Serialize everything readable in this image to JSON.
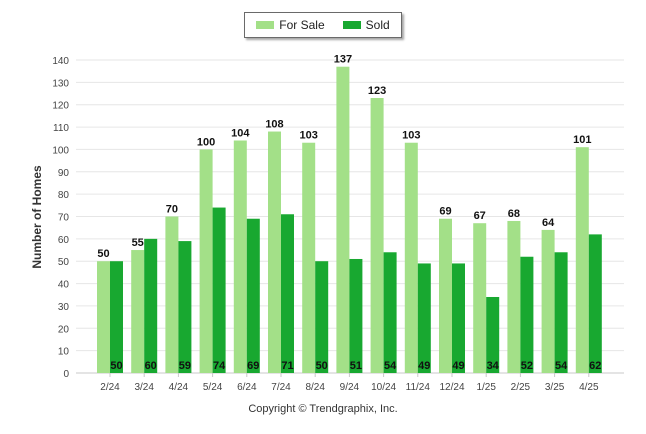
{
  "chart_data": {
    "type": "bar",
    "categories": [
      "2/24",
      "3/24",
      "4/24",
      "5/24",
      "6/24",
      "7/24",
      "8/24",
      "9/24",
      "10/24",
      "11/24",
      "12/24",
      "1/25",
      "2/25",
      "3/25",
      "4/25"
    ],
    "series": [
      {
        "name": "For Sale",
        "color": "#a3e088",
        "values": [
          50,
          55,
          70,
          100,
          104,
          108,
          103,
          137,
          123,
          103,
          69,
          67,
          68,
          64,
          101
        ]
      },
      {
        "name": "Sold",
        "color": "#18a830",
        "values": [
          50,
          60,
          59,
          74,
          69,
          71,
          50,
          51,
          54,
          49,
          49,
          34,
          52,
          54,
          62
        ]
      }
    ],
    "ylabel": "Number of Homes",
    "ylim": [
      0,
      140
    ],
    "yticks": [
      0,
      10,
      20,
      30,
      40,
      50,
      60,
      70,
      80,
      90,
      100,
      110,
      120,
      130,
      140
    ],
    "grid": true,
    "legend": "top-center"
  },
  "footer": {
    "copyright": "Copyright © Trendgraphix, Inc."
  }
}
